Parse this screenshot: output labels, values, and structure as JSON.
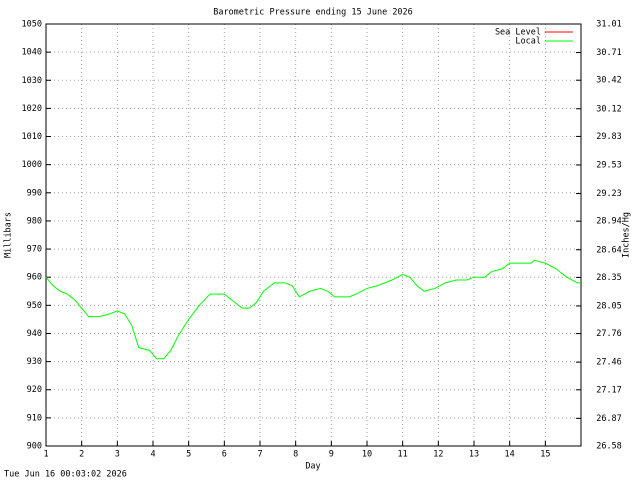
{
  "chart_data": {
    "type": "line",
    "title": "Barometric Pressure ending 15 June 2026",
    "xlabel": "Day",
    "ylabel": "Millibars",
    "y2label": "Inches/Hg",
    "footer": "Tue Jun 16 00:03:02 2026",
    "xlim": [
      1,
      16
    ],
    "xticks": [
      1,
      2,
      3,
      4,
      5,
      6,
      7,
      8,
      9,
      10,
      11,
      12,
      13,
      14,
      15
    ],
    "ylim": [
      900,
      1050
    ],
    "yticks": [
      900,
      910,
      920,
      930,
      940,
      950,
      960,
      970,
      980,
      990,
      1000,
      1010,
      1020,
      1030,
      1040,
      1050
    ],
    "y2lim": [
      26.58,
      31.01
    ],
    "y2ticks": [
      26.58,
      26.87,
      27.17,
      27.46,
      27.76,
      28.05,
      28.35,
      28.64,
      28.94,
      29.23,
      29.53,
      29.83,
      30.12,
      30.42,
      30.71,
      31.01
    ],
    "grid": true,
    "legend": "top-right",
    "series": [
      {
        "name": "Sea Level",
        "color": "#ff0000",
        "x": [],
        "values": []
      },
      {
        "name": "Local",
        "color": "#00ff00",
        "x": [
          1.0,
          1.2,
          1.4,
          1.6,
          1.8,
          2.0,
          2.2,
          2.5,
          2.8,
          3.0,
          3.2,
          3.4,
          3.6,
          3.9,
          4.1,
          4.3,
          4.5,
          4.7,
          5.0,
          5.3,
          5.6,
          6.0,
          6.2,
          6.5,
          6.7,
          6.9,
          7.1,
          7.4,
          7.7,
          7.9,
          8.1,
          8.4,
          8.7,
          8.9,
          9.1,
          9.5,
          9.7,
          10.0,
          10.3,
          10.7,
          11.0,
          11.2,
          11.4,
          11.6,
          11.9,
          12.2,
          12.5,
          12.8,
          13.0,
          13.3,
          13.5,
          13.8,
          14.0,
          14.3,
          14.6,
          14.7,
          15.0,
          15.3,
          15.6,
          15.9,
          16.0
        ],
        "values": [
          960,
          957,
          955,
          954,
          952,
          949,
          946,
          946,
          947,
          948,
          947,
          943,
          935,
          934,
          931,
          931,
          934,
          939,
          945,
          950,
          954,
          954,
          952,
          949,
          949,
          951,
          955,
          958,
          958,
          957,
          953,
          955,
          956,
          955,
          953,
          953,
          954,
          956,
          957,
          959,
          961,
          960,
          957,
          955,
          956,
          958,
          959,
          959,
          960,
          960,
          962,
          963,
          965,
          965,
          965,
          966,
          965,
          963,
          960,
          958,
          958
        ]
      }
    ]
  }
}
